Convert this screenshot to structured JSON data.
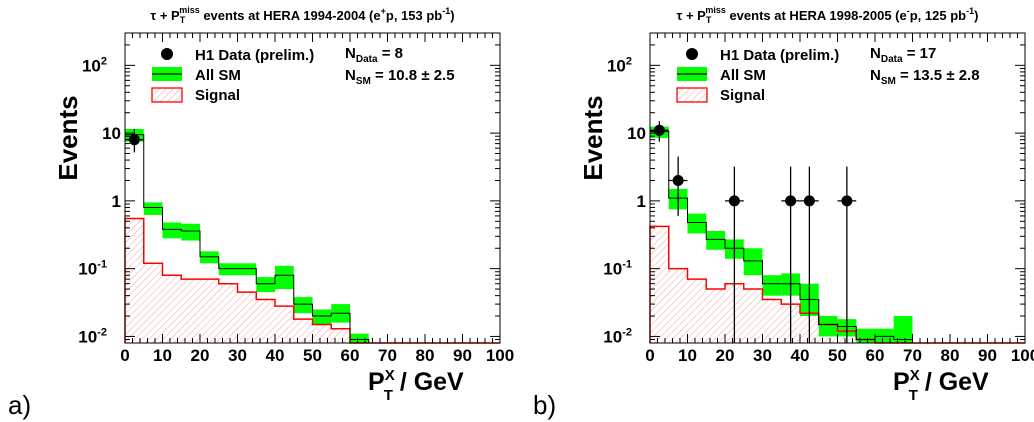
{
  "chart_data": [
    {
      "type": "histogram",
      "panel_label": "a)",
      "title": {
        "pre": "τ + P",
        "sub": "T",
        "sup": "miss",
        "post": " events at HERA 1994-2004 (e",
        "beam_sup": "+",
        "post2": "p, 153 pb",
        "lumi_sup": "-1",
        "close": ")"
      },
      "ylabel": "Events",
      "xlabel": {
        "main": "P",
        "sup": "X",
        "sub": "T",
        "rest": " / GeV"
      },
      "xlim": [
        0,
        100
      ],
      "ylim": [
        0.008,
        300
      ],
      "yscale": "log",
      "xticks": [
        0,
        10,
        20,
        30,
        40,
        50,
        60,
        70,
        80,
        90,
        100
      ],
      "yticks": [
        {
          "value": 0.01,
          "base": "10",
          "exp": "-2"
        },
        {
          "value": 0.1,
          "base": "10",
          "exp": "-1"
        },
        {
          "value": 1,
          "base": "1",
          "exp": ""
        },
        {
          "value": 10,
          "base": "10",
          "exp": ""
        },
        {
          "value": 100,
          "base": "10",
          "exp": "2"
        }
      ],
      "legend": [
        {
          "name": "H1 Data (prelim.)",
          "style": "marker"
        },
        {
          "name": "All SM",
          "style": "band"
        },
        {
          "name": "Signal",
          "style": "hatch"
        }
      ],
      "counts": {
        "n_data_label": "N",
        "n_data_sub": "Data",
        "n_data_eq": "=",
        "n_data_value": "8",
        "n_sm_label": "N",
        "n_sm_sub": "SM",
        "n_sm_eq": "=",
        "n_sm_value": "10.8 ±  2.5"
      },
      "bin_edges": [
        0,
        5,
        10,
        15,
        20,
        25,
        30,
        35,
        40,
        45,
        50,
        55,
        60,
        65,
        70,
        75,
        80,
        85,
        90,
        95,
        100
      ],
      "sm": [
        9.5,
        0.8,
        0.38,
        0.36,
        0.15,
        0.1,
        0.1,
        0.06,
        0.08,
        0.03,
        0.02,
        0.022,
        0.009,
        0.008,
        0.008,
        0.008,
        0.008,
        0.008,
        0.008,
        0.008
      ],
      "sm_lo": [
        7.5,
        0.62,
        0.28,
        0.26,
        0.12,
        0.08,
        0.08,
        0.045,
        0.05,
        0.022,
        0.015,
        0.016,
        0.008,
        0.008,
        0.008,
        0.008,
        0.008,
        0.008,
        0.008,
        0.008
      ],
      "sm_hi": [
        11.5,
        0.95,
        0.48,
        0.46,
        0.18,
        0.12,
        0.12,
        0.075,
        0.11,
        0.038,
        0.025,
        0.03,
        0.011,
        0.008,
        0.008,
        0.008,
        0.008,
        0.008,
        0.008,
        0.008
      ],
      "signal": [
        0.55,
        0.12,
        0.08,
        0.07,
        0.07,
        0.06,
        0.045,
        0.035,
        0.028,
        0.018,
        0.015,
        0.013,
        0.008,
        0.008,
        0.008,
        0.008,
        0.008,
        0.008,
        0.008,
        0.008
      ],
      "data_points": [
        {
          "x": 2.5,
          "y": 8,
          "ylo": 5.2,
          "yhi": 11.5,
          "xerr": 2.5
        }
      ],
      "colors": {
        "band": "#00ff00",
        "sm_line": "#000000",
        "signal_line": "#ff0000",
        "hatch": "#f4a0a0"
      }
    },
    {
      "type": "histogram",
      "panel_label": "b)",
      "title": {
        "pre": "τ + P",
        "sub": "T",
        "sup": "miss",
        "post": " events at HERA 1998-2005 (e",
        "beam_sup": "-",
        "post2": "p, 125 pb",
        "lumi_sup": "-1",
        "close": ")"
      },
      "ylabel": "Events",
      "xlabel": {
        "main": "P",
        "sup": "X",
        "sub": "T",
        "rest": " / GeV"
      },
      "xlim": [
        0,
        100
      ],
      "ylim": [
        0.008,
        300
      ],
      "yscale": "log",
      "xticks": [
        0,
        10,
        20,
        30,
        40,
        50,
        60,
        70,
        80,
        90,
        100
      ],
      "yticks": [
        {
          "value": 0.01,
          "base": "10",
          "exp": "-2"
        },
        {
          "value": 0.1,
          "base": "10",
          "exp": "-1"
        },
        {
          "value": 1,
          "base": "1",
          "exp": ""
        },
        {
          "value": 10,
          "base": "10",
          "exp": ""
        },
        {
          "value": 100,
          "base": "10",
          "exp": "2"
        }
      ],
      "legend": [
        {
          "name": "H1 Data (prelim.)",
          "style": "marker"
        },
        {
          "name": "All SM",
          "style": "band"
        },
        {
          "name": "Signal",
          "style": "hatch"
        }
      ],
      "counts": {
        "n_data_label": "N",
        "n_data_sub": "Data",
        "n_data_eq": "=",
        "n_data_value": "17",
        "n_sm_label": "N",
        "n_sm_sub": "SM",
        "n_sm_eq": "=",
        "n_sm_value": "13.5 ±  2.8"
      },
      "bin_edges": [
        0,
        5,
        10,
        15,
        20,
        25,
        30,
        35,
        40,
        45,
        50,
        55,
        60,
        65,
        70,
        75,
        80,
        85,
        90,
        95,
        100
      ],
      "sm": [
        10.5,
        1.1,
        0.48,
        0.27,
        0.2,
        0.13,
        0.06,
        0.06,
        0.035,
        0.015,
        0.014,
        0.009,
        0.01,
        0.009,
        0.008,
        0.008,
        0.008,
        0.008,
        0.008,
        0.008
      ],
      "sm_lo": [
        8.5,
        0.75,
        0.33,
        0.19,
        0.14,
        0.08,
        0.04,
        0.04,
        0.02,
        0.01,
        0.01,
        0.008,
        0.008,
        0.008,
        0.008,
        0.008,
        0.008,
        0.008,
        0.008,
        0.008
      ],
      "sm_hi": [
        12.5,
        1.5,
        0.65,
        0.36,
        0.27,
        0.2,
        0.08,
        0.085,
        0.06,
        0.02,
        0.018,
        0.013,
        0.013,
        0.02,
        0.008,
        0.008,
        0.008,
        0.008,
        0.008,
        0.008
      ],
      "signal": [
        0.42,
        0.1,
        0.07,
        0.05,
        0.06,
        0.05,
        0.035,
        0.03,
        0.022,
        0.015,
        0.012,
        0.009,
        0.008,
        0.008,
        0.008,
        0.008,
        0.008,
        0.008,
        0.008,
        0.008
      ],
      "data_points": [
        {
          "x": 2.5,
          "y": 11,
          "ylo": 7.5,
          "yhi": 15,
          "xerr": 2.5
        },
        {
          "x": 7.5,
          "y": 2,
          "ylo": 0.6,
          "yhi": 4.5,
          "xerr": 2.5
        },
        {
          "x": 22.5,
          "y": 1,
          "ylo": 0.008,
          "yhi": 3.2,
          "xerr": 2.5
        },
        {
          "x": 37.5,
          "y": 1,
          "ylo": 0.008,
          "yhi": 3.2,
          "xerr": 2.5
        },
        {
          "x": 42.5,
          "y": 1,
          "ylo": 0.008,
          "yhi": 3.2,
          "xerr": 2.5
        },
        {
          "x": 52.5,
          "y": 1,
          "ylo": 0.008,
          "yhi": 3.2,
          "xerr": 2.5
        }
      ],
      "colors": {
        "band": "#00ff00",
        "sm_line": "#000000",
        "signal_line": "#ff0000",
        "hatch": "#f4a0a0"
      }
    }
  ]
}
